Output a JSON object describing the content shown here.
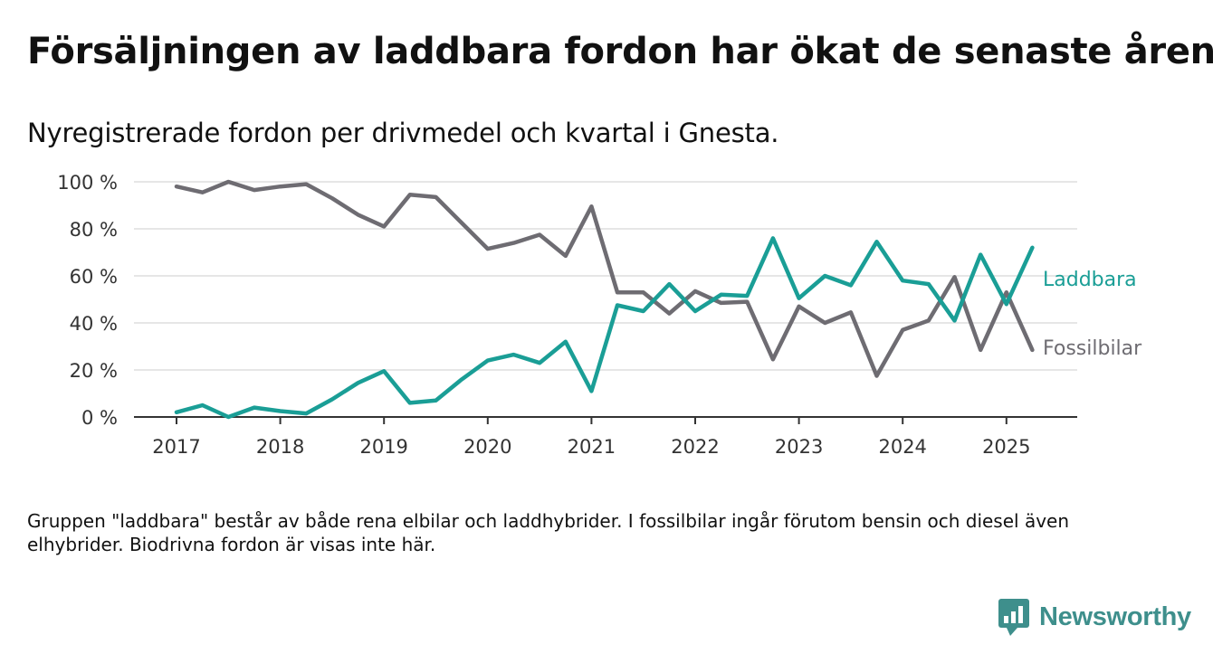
{
  "header": {
    "title": "Försäljningen av laddbara fordon har ökat de senaste åren",
    "subtitle": "Nyregistrerade fordon per drivmedel och kvartal i Gnesta."
  },
  "footer": {
    "note": "Gruppen \"laddbara\" består av både rena elbilar och laddhybrider. I fossilbilar ingår förutom bensin och diesel även elhybrider. Biodrivna fordon är visas inte här.",
    "brand": "Newsworthy",
    "brand_icon": "bar-chart-speech-bubble-icon"
  },
  "chart_data": {
    "type": "line",
    "title": "Försäljningen av laddbara fordon har ökat de senaste åren",
    "subtitle": "Nyregistrerade fordon per drivmedel och kvartal i Gnesta.",
    "xlabel": "",
    "ylabel": "",
    "x": [
      "2017-Q1",
      "2017-Q2",
      "2017-Q3",
      "2017-Q4",
      "2018-Q1",
      "2018-Q2",
      "2018-Q3",
      "2018-Q4",
      "2019-Q1",
      "2019-Q2",
      "2019-Q3",
      "2019-Q4",
      "2020-Q1",
      "2020-Q2",
      "2020-Q3",
      "2020-Q4",
      "2021-Q1",
      "2021-Q2",
      "2021-Q3",
      "2021-Q4",
      "2022-Q1",
      "2022-Q2",
      "2022-Q3",
      "2022-Q4",
      "2023-Q1",
      "2023-Q2",
      "2023-Q3",
      "2023-Q4",
      "2024-Q1",
      "2024-Q2",
      "2024-Q3",
      "2024-Q4",
      "2025-Q1",
      "2025-Q2"
    ],
    "x_tick_labels": [
      "2017",
      "2018",
      "2019",
      "2020",
      "2021",
      "2022",
      "2023",
      "2024",
      "2025"
    ],
    "y_ticks": [
      0,
      20,
      40,
      60,
      80,
      100
    ],
    "y_tick_labels": [
      "0 %",
      "20 %",
      "40 %",
      "60 %",
      "80 %",
      "100 %"
    ],
    "ylim": [
      0,
      100
    ],
    "y_unit": "%",
    "grid": true,
    "legend": "direct labels at line ends (right)",
    "series": [
      {
        "name": "Laddbara",
        "color": "#1a9e96",
        "values": [
          2,
          5,
          0,
          4,
          2.5,
          1.5,
          7.5,
          14.5,
          19.5,
          6,
          7,
          16,
          24,
          26.5,
          23,
          32,
          11,
          47.5,
          45,
          56.5,
          45,
          52,
          51.5,
          76,
          50.5,
          60,
          56,
          74.5,
          58,
          56.5,
          41,
          69,
          48,
          72
        ]
      },
      {
        "name": "Fossilbilar",
        "color": "#6e6c72",
        "values": [
          98,
          95.5,
          100,
          96.5,
          98,
          99,
          93,
          86,
          81,
          94.5,
          93.5,
          82.5,
          71.5,
          74,
          77.5,
          68.5,
          89.5,
          53,
          53,
          44,
          53.5,
          48.5,
          49,
          24.5,
          47,
          40,
          44.5,
          17.5,
          37,
          41,
          59.5,
          28.5,
          53,
          28.5
        ]
      }
    ]
  }
}
